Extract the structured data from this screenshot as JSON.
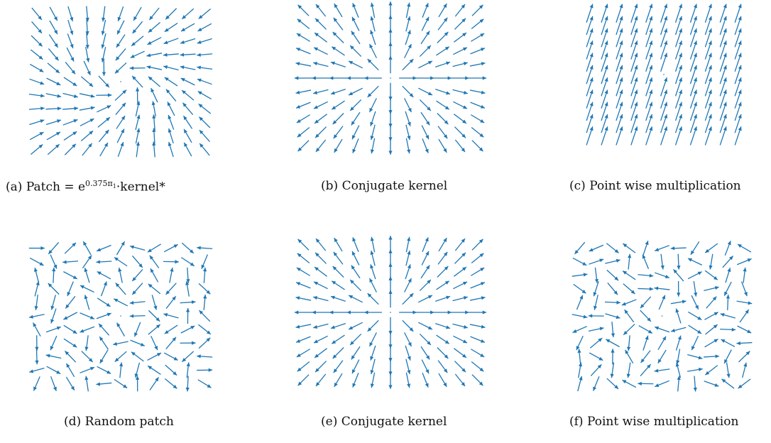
{
  "figure": {
    "arrow_color": "#1f77b4",
    "captions": {
      "a": {
        "prefix": "(a)",
        "text_before": "Patch = e",
        "superscript": "0.375π",
        "sub": "1",
        "text_after": "·kernel*"
      },
      "b": {
        "prefix": "(b)",
        "text": "Conjugate kernel"
      },
      "c": {
        "prefix": "(c)",
        "text": "Point wise multiplication"
      },
      "d": {
        "prefix": "(d)",
        "text": "Random patch"
      },
      "e": {
        "prefix": "(e)",
        "text": "Conjugate kernel"
      },
      "f": {
        "prefix": "(f)",
        "text": "Point wise multiplication"
      }
    },
    "panels": [
      {
        "id": "a",
        "field": "spiral"
      },
      {
        "id": "b",
        "field": "radial"
      },
      {
        "id": "c",
        "field": "uniform"
      },
      {
        "id": "d",
        "field": "random"
      },
      {
        "id": "e",
        "field": "radial"
      },
      {
        "id": "f",
        "field": "random"
      }
    ]
  }
}
